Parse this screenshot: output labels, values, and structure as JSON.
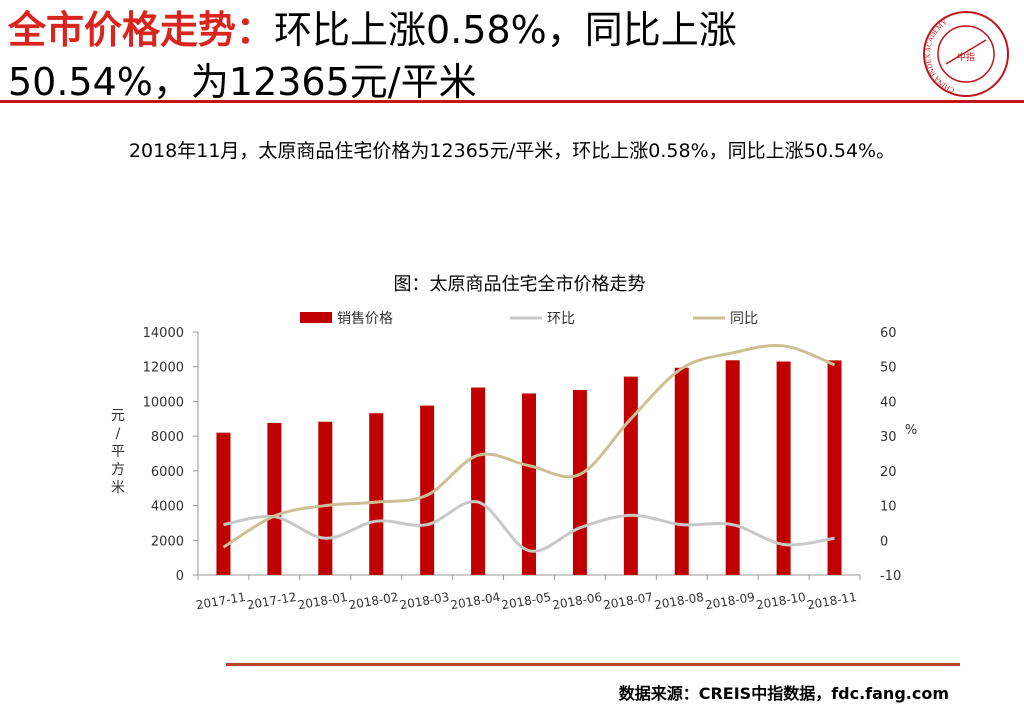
{
  "header": {
    "title_highlight": "全市价格走势：",
    "title_rest": "环比上涨0.58%，同比上涨50.54%，为12365元/平米"
  },
  "logo": {
    "name": "china-index-academy-logo",
    "ring_text": "CHINA INDEX ACADEMY",
    "center_text": "中指"
  },
  "summary": "2018年11月，太原商品住宅价格为12365元/平米，环比上涨0.58%，同比上涨50.54%。",
  "chart_title": "图：太原商品住宅全市价格走势",
  "footer": {
    "source": "数据来源：CREIS中指数据，fdc.fang.com"
  },
  "colors": {
    "accent": "#c0151b",
    "bar": "#c00000",
    "mom": "#c8c8c8",
    "yoy": "#cdbf94"
  },
  "chart_data": {
    "type": "bar",
    "categories": [
      "2017-11",
      "2017-12",
      "2018-01",
      "2018-02",
      "2018-03",
      "2018-04",
      "2018-05",
      "2018-06",
      "2018-07",
      "2018-08",
      "2018-09",
      "2018-10",
      "2018-11"
    ],
    "series": [
      {
        "name": "销售价格",
        "type": "bar",
        "axis": "left",
        "values": [
          8200,
          8760,
          8830,
          9320,
          9760,
          10800,
          10460,
          10660,
          11430,
          11940,
          12370,
          12300,
          12365
        ]
      },
      {
        "name": "环比",
        "type": "line",
        "axis": "right",
        "values": [
          4.5,
          6.8,
          0.6,
          5.5,
          4.5,
          11.0,
          -3.0,
          3.6,
          7.2,
          4.5,
          4.5,
          -1.2,
          0.58
        ]
      },
      {
        "name": "同比",
        "type": "line",
        "axis": "right",
        "values": [
          -2.0,
          7.0,
          10.0,
          11.0,
          13.0,
          24.5,
          21.5,
          19.0,
          35.0,
          49.5,
          54.0,
          56.0,
          50.54
        ]
      }
    ],
    "ylabel_left": "元/平方米",
    "ylabel_right": "%",
    "ylim_left": [
      0,
      14000
    ],
    "yticks_left": [
      0,
      2000,
      4000,
      6000,
      8000,
      10000,
      12000,
      14000
    ],
    "ylim_right": [
      -10,
      60
    ],
    "yticks_right": [
      -10,
      0,
      10,
      20,
      30,
      40,
      50,
      60
    ],
    "grid": false,
    "legend_position": "top"
  }
}
